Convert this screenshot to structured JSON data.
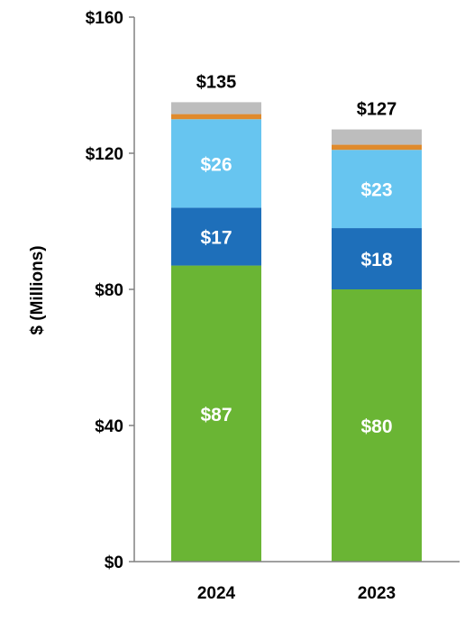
{
  "chart_data": {
    "type": "bar",
    "stacked": true,
    "ylabel": "$ (Millions)",
    "xlabel": "",
    "ylim": [
      0,
      160
    ],
    "yticks": [
      0,
      40,
      80,
      120,
      160
    ],
    "ytick_labels": [
      "$0",
      "$40",
      "$80",
      "$120",
      "$160"
    ],
    "categories": [
      "2024",
      "2023"
    ],
    "totals": [
      135,
      127
    ],
    "total_labels": [
      "$135",
      "$127"
    ],
    "series": [
      {
        "values": [
          87,
          80
        ],
        "labels": [
          "$87",
          "$80"
        ],
        "color": "#6ab534"
      },
      {
        "values": [
          17,
          18
        ],
        "labels": [
          "$17",
          "$18"
        ],
        "color": "#1e6fba"
      },
      {
        "values": [
          26,
          23
        ],
        "labels": [
          "$26",
          "$23"
        ],
        "color": "#67c5f0"
      },
      {
        "values": [
          1.5,
          1.5
        ],
        "labels": [
          "",
          ""
        ],
        "color": "#e08a2c"
      },
      {
        "values": [
          3.5,
          4.5
        ],
        "labels": [
          "",
          ""
        ],
        "color": "#bdbdbd"
      }
    ],
    "grid": false,
    "legend": "none"
  }
}
